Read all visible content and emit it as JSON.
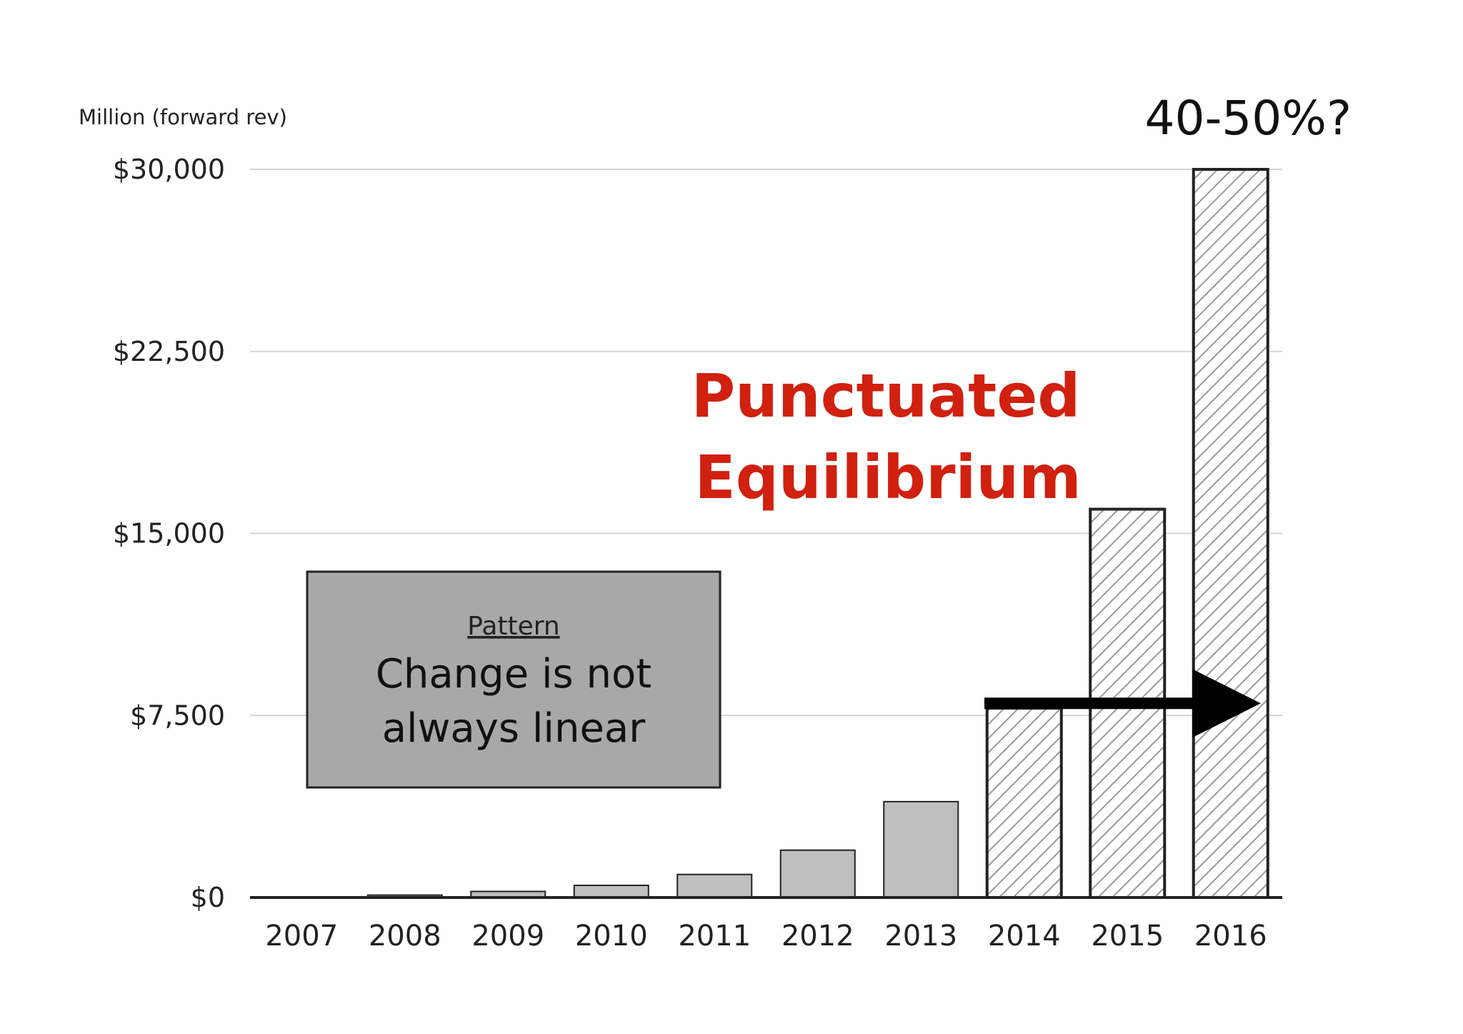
{
  "chart_data": {
    "type": "bar",
    "ylabel": "Million (forward rev)",
    "categories": [
      "2007",
      "2008",
      "2009",
      "2010",
      "2011",
      "2012",
      "2013",
      "2014",
      "2015",
      "2016"
    ],
    "values": [
      0,
      100,
      250,
      500,
      950,
      1950,
      3950,
      7800,
      16000,
      30000
    ],
    "projected": [
      false,
      false,
      false,
      false,
      false,
      false,
      false,
      true,
      true,
      true
    ],
    "ylim": [
      0,
      30000
    ],
    "yticks": [
      0,
      7500,
      15000,
      22500,
      30000
    ],
    "ytick_labels": [
      "$0",
      "$7,500",
      "$15,000",
      "$22,500",
      "$30,000"
    ],
    "grid": true,
    "annotations": {
      "corner_note": "40-50%?",
      "headline_line1": "Punctuated",
      "headline_line2": "Equilibrium",
      "arrow_level": 8000
    },
    "callout_box": {
      "title": "Pattern",
      "line1": "Change is not",
      "line2": "always linear"
    },
    "colors": {
      "actual_bar": "#c0bfc0",
      "projected_hatch": "#9a9a9a",
      "callout_fill": "#a8a8a8",
      "headline": "#d0200f"
    }
  }
}
